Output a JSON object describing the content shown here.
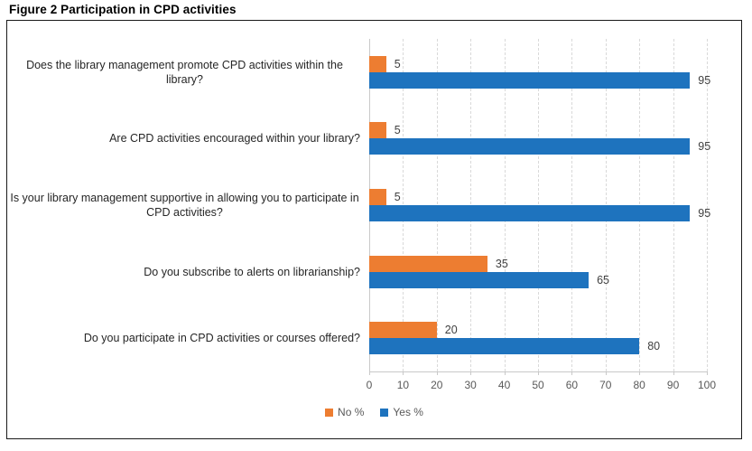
{
  "title": "Figure 2 Participation in CPD activities",
  "chart_data": {
    "type": "bar",
    "orientation": "horizontal",
    "title": "Figure 2 Participation in CPD activities",
    "categories": [
      "Does the library management promote CPD activities within the library?",
      "Are CPD activities encouraged within your library?",
      "Is your library management supportive in allowing you to participate in CPD activities?",
      "Do you subscribe to alerts on librarianship?",
      "Do you participate in CPD activities or courses offered?"
    ],
    "series": [
      {
        "name": "No %",
        "color": "#ED7D31",
        "values": [
          5,
          5,
          5,
          35,
          20
        ]
      },
      {
        "name": "Yes %",
        "color": "#1E73BE",
        "values": [
          95,
          95,
          95,
          65,
          80
        ]
      }
    ],
    "xlim": [
      0,
      100
    ],
    "xticks": [
      0,
      10,
      20,
      30,
      40,
      50,
      60,
      70,
      80,
      90,
      100
    ],
    "grid": "vertical-dashed",
    "gridline_color": "#D9D9D9",
    "legend_position": "bottom",
    "data_labels": true,
    "data_label_color": "#404040",
    "tick_label_color": "#595959",
    "category_label_color": "#262626"
  }
}
